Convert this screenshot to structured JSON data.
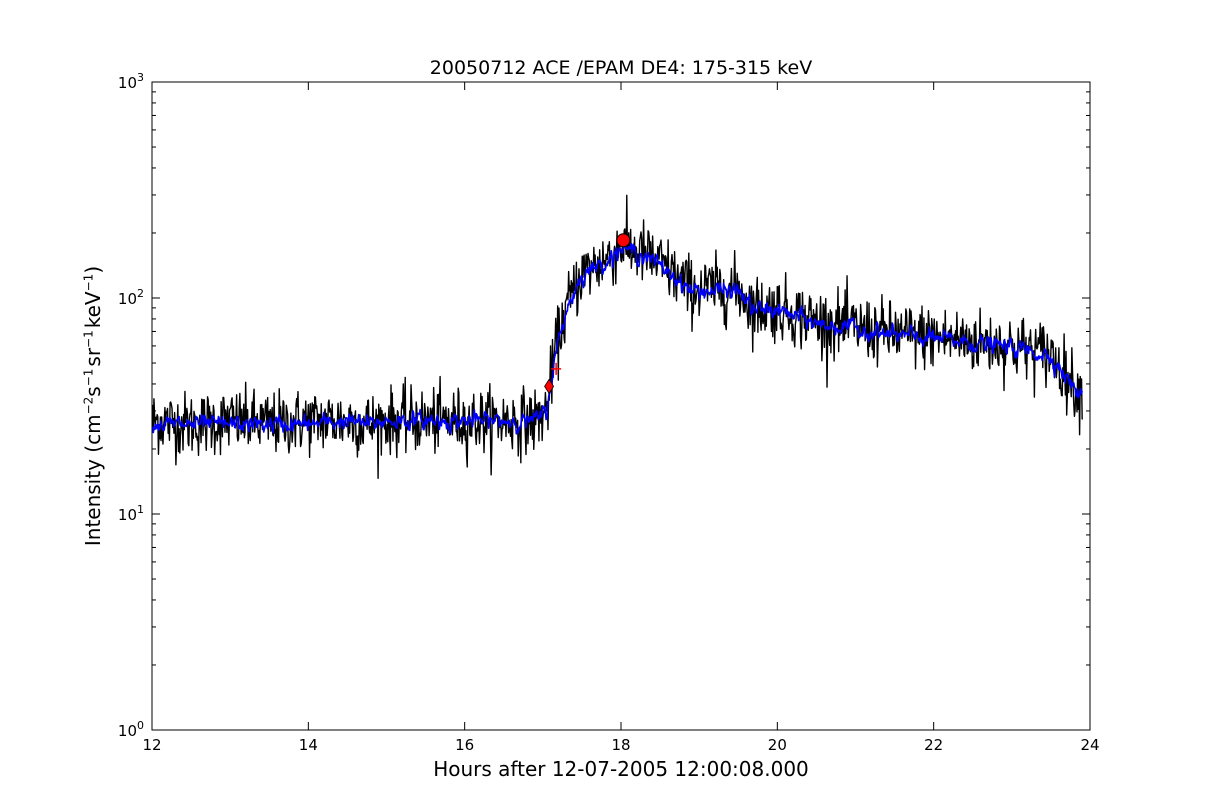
{
  "chart_data": {
    "type": "line",
    "title": "20050712 ACE /EPAM DE4: 175-315 keV",
    "xlabel": "Hours after 12-07-2005 12:00:08.000",
    "ylabel": {
      "prefix": "Intensity (cm",
      "sup1": "−2",
      "mid1": "s",
      "sup2": "−1",
      "mid2": "sr",
      "sup3": "−1",
      "mid3": "keV",
      "sup4": "−1",
      "suffix": ")"
    },
    "xlim": [
      12,
      24
    ],
    "ylim": [
      1,
      1000
    ],
    "yscale": "log",
    "grid": false,
    "x_ticks": [
      "12",
      "14",
      "16",
      "18",
      "20",
      "22",
      "24"
    ],
    "y_ticks": [
      {
        "base": "10",
        "exp": "0"
      },
      {
        "base": "10",
        "exp": "1"
      },
      {
        "base": "10",
        "exp": "2"
      },
      {
        "base": "10",
        "exp": "3"
      }
    ],
    "series": [
      {
        "style": "raw",
        "color": "#000000",
        "x": [
          12.0,
          12.5,
          13.0,
          13.5,
          14.0,
          14.5,
          14.8,
          15.0,
          15.5,
          16.0,
          16.5,
          16.9,
          17.05,
          17.15,
          17.3,
          17.5,
          17.8,
          18.0,
          18.3,
          18.6,
          18.9,
          19.2,
          19.5,
          19.7,
          20.0,
          20.5,
          21.0,
          21.5,
          22.0,
          22.5,
          23.0,
          23.5,
          23.9
        ],
        "y": [
          27,
          26,
          27,
          26,
          27,
          27,
          26,
          27,
          27,
          27,
          27,
          27,
          30,
          55,
          90,
          130,
          150,
          175,
          160,
          135,
          110,
          110,
          110,
          90,
          90,
          78,
          73,
          68,
          66,
          63,
          60,
          55,
          35
        ]
      },
      {
        "style": "smoothed",
        "color": "#0000ff",
        "x": [
          12.0,
          12.5,
          13.0,
          13.5,
          14.0,
          14.5,
          14.8,
          15.0,
          15.5,
          16.0,
          16.5,
          16.9,
          17.05,
          17.15,
          17.3,
          17.5,
          17.8,
          18.0,
          18.3,
          18.6,
          18.9,
          19.2,
          19.5,
          19.7,
          20.0,
          20.5,
          21.0,
          21.5,
          22.0,
          22.5,
          23.0,
          23.5,
          23.9
        ],
        "y": [
          26,
          26,
          26,
          26,
          26,
          27,
          26,
          27,
          27,
          27,
          27,
          27,
          30,
          52,
          88,
          128,
          148,
          170,
          158,
          133,
          108,
          108,
          108,
          88,
          88,
          76,
          72,
          67,
          65,
          62,
          59,
          54,
          34
        ]
      }
    ],
    "markers": [
      {
        "shape": "circle",
        "color": "#ff0000",
        "x": 18.03,
        "y": 185
      },
      {
        "shape": "diamond",
        "color": "#ff0000",
        "x": 17.08,
        "y": 39
      },
      {
        "shape": "plus",
        "color": "#ff0000",
        "x": 17.17,
        "y": 47
      }
    ]
  }
}
